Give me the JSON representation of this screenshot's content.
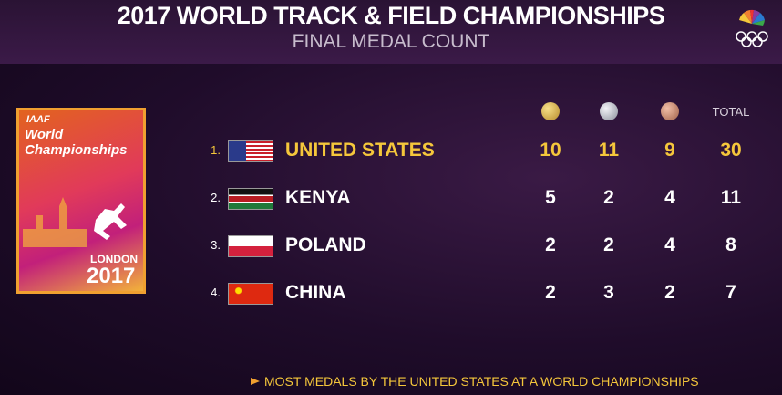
{
  "header": {
    "title": "2017 WORLD TRACK & FIELD CHAMPIONSHIPS",
    "subtitle": "FINAL MEDAL COUNT"
  },
  "logo": {
    "org": "IAAF",
    "name": "World Championships",
    "city": "LONDON",
    "year": "2017"
  },
  "table": {
    "total_header": "TOTAL",
    "rows": [
      {
        "rank": "1.",
        "country": "UNITED STATES",
        "gold": 10,
        "silver": 11,
        "bronze": 9,
        "total": 30
      },
      {
        "rank": "2.",
        "country": "KENYA",
        "gold": 5,
        "silver": 2,
        "bronze": 4,
        "total": 11
      },
      {
        "rank": "3.",
        "country": "POLAND",
        "gold": 2,
        "silver": 2,
        "bronze": 4,
        "total": 8
      },
      {
        "rank": "4.",
        "country": "CHINA",
        "gold": 2,
        "silver": 3,
        "bronze": 2,
        "total": 7
      }
    ]
  },
  "footer": {
    "note": "MOST MEDALS BY THE UNITED STATES AT A WORLD CHAMPIONSHIPS"
  }
}
